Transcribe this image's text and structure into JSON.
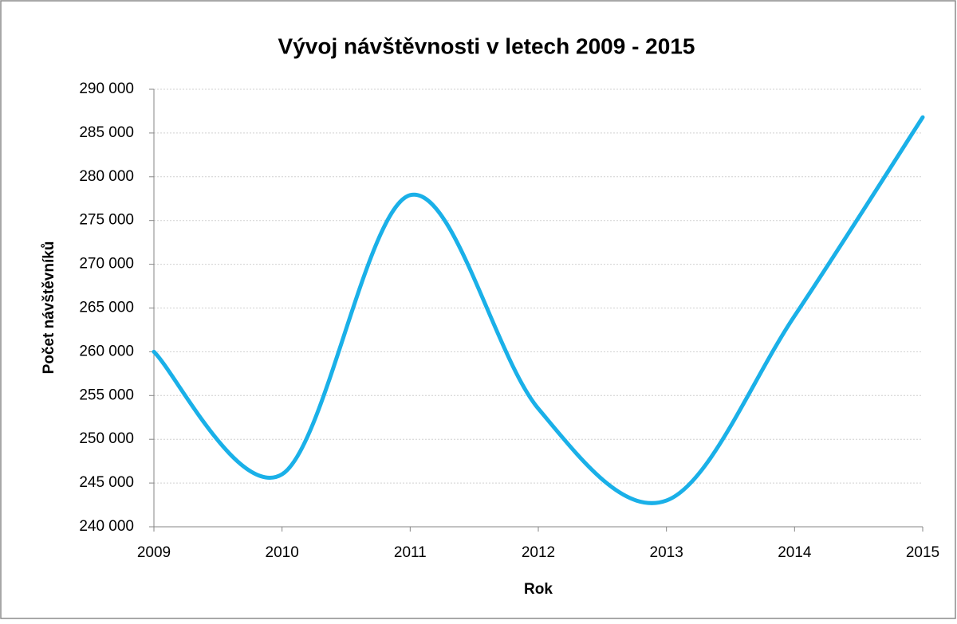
{
  "chart_data": {
    "type": "line",
    "title": "Vývoj návštěvnosti v letech 2009 - 2015",
    "x_label": "Rok",
    "y_label": "Počet návštěvníků",
    "x": [
      2009,
      2010,
      2011,
      2012,
      2013,
      2014,
      2015
    ],
    "series": [
      {
        "name": "Počet návštěvníků",
        "color": "#1ab0e8",
        "values": [
          260000,
          246000,
          277900,
          253500,
          243000,
          264100,
          286800
        ]
      }
    ],
    "xlim": [
      2009,
      2015
    ],
    "xticks": [
      2009,
      2010,
      2011,
      2012,
      2013,
      2014,
      2015
    ],
    "ylim": [
      240000,
      290000
    ],
    "yticks": [
      {
        "value": 240000,
        "label": "240 000"
      },
      {
        "value": 245000,
        "label": "245 000"
      },
      {
        "value": 250000,
        "label": "250 000"
      },
      {
        "value": 255000,
        "label": "255 000"
      },
      {
        "value": 260000,
        "label": "260 000"
      },
      {
        "value": 265000,
        "label": "265 000"
      },
      {
        "value": 270000,
        "label": "270 000"
      },
      {
        "value": 275000,
        "label": "275 000"
      },
      {
        "value": 280000,
        "label": "280 000"
      },
      {
        "value": 285000,
        "label": "285 000"
      },
      {
        "value": 290000,
        "label": "290 000"
      }
    ],
    "grid": true,
    "smooth": true
  }
}
